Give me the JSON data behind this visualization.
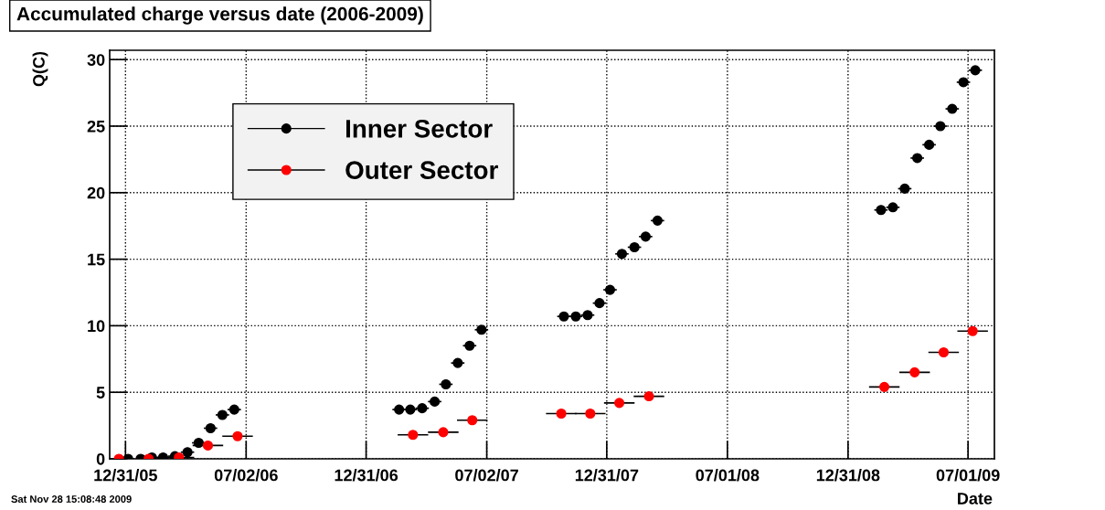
{
  "chart_data": {
    "type": "scatter",
    "title": "Accumulated charge versus date (2006-2009)",
    "xlabel": "Date",
    "ylabel": "Q(C)",
    "annotations": [
      "Sat Nov 28 15:08:48 2009"
    ],
    "xlim": [
      "2005-12-07",
      "2009-08-10"
    ],
    "ylim": [
      0,
      30.7
    ],
    "xticks": [
      {
        "value": "2005-12-31",
        "label": "12/31/05"
      },
      {
        "value": "2006-07-02",
        "label": "07/02/06"
      },
      {
        "value": "2006-12-31",
        "label": "12/31/06"
      },
      {
        "value": "2007-07-02",
        "label": "07/02/07"
      },
      {
        "value": "2007-12-31",
        "label": "12/31/07"
      },
      {
        "value": "2008-07-01",
        "label": "07/01/08"
      },
      {
        "value": "2008-12-31",
        "label": "12/31/08"
      },
      {
        "value": "2009-07-01",
        "label": "07/01/09"
      }
    ],
    "yticks": [
      0,
      5,
      10,
      15,
      20,
      25,
      30
    ],
    "grid": true,
    "legend": "top left",
    "marker": "circle",
    "series": [
      {
        "name": "Inner Sector",
        "color": "#000000",
        "x": [
          "2006-01-04",
          "2006-01-23",
          "2006-02-09",
          "2006-02-26",
          "2006-03-16",
          "2006-04-04",
          "2006-04-21",
          "2006-05-09",
          "2006-05-27",
          "2006-06-14",
          "2007-02-19",
          "2007-03-08",
          "2007-03-26",
          "2007-04-14",
          "2007-05-01",
          "2007-05-19",
          "2007-06-06",
          "2007-06-24",
          "2007-10-27",
          "2007-11-14",
          "2007-12-02",
          "2007-12-20",
          "2008-01-05",
          "2008-01-23",
          "2008-02-11",
          "2008-02-28",
          "2008-03-17",
          "2009-02-19",
          "2009-03-09",
          "2009-03-27",
          "2009-04-15",
          "2009-05-03",
          "2009-05-20",
          "2009-06-07",
          "2009-06-24",
          "2009-07-12"
        ],
        "values": [
          0,
          0,
          0.1,
          0.1,
          0.2,
          0.5,
          1.2,
          2.3,
          3.3,
          3.7,
          3.7,
          3.7,
          3.8,
          4.3,
          5.6,
          7.2,
          8.5,
          9.7,
          10.7,
          10.7,
          10.8,
          11.7,
          12.7,
          15.4,
          15.9,
          16.7,
          17.9,
          18.7,
          18.9,
          20.3,
          22.6,
          23.6,
          25.0,
          26.3,
          28.3,
          29.2
        ],
        "xerrors": [
          null,
          null,
          9,
          9,
          9,
          9,
          9,
          9,
          9,
          9,
          9,
          9,
          9,
          9,
          9,
          9,
          9,
          9,
          9,
          9,
          9,
          9,
          9,
          9,
          9,
          9,
          9,
          9,
          9,
          9,
          9,
          9,
          9,
          9,
          9,
          9
        ]
      },
      {
        "name": "Outer Sector",
        "color": "#ff0000",
        "x": [
          "2005-12-21",
          "2006-02-04",
          "2006-03-22",
          "2006-05-05",
          "2006-06-19",
          "2007-03-12",
          "2007-04-27",
          "2007-06-10",
          "2007-10-23",
          "2007-12-06",
          "2008-01-19",
          "2008-03-04",
          "2009-02-24",
          "2009-04-11",
          "2009-05-25",
          "2009-07-08"
        ],
        "values": [
          0,
          0,
          0.1,
          1.0,
          1.7,
          1.8,
          2.0,
          2.9,
          3.4,
          3.4,
          4.2,
          4.7,
          5.4,
          6.5,
          8.0,
          9.6
        ],
        "xerrors": [
          null,
          null,
          22,
          22,
          22,
          22,
          22,
          22,
          22,
          22,
          22,
          22,
          22,
          22,
          22,
          22
        ]
      }
    ]
  }
}
